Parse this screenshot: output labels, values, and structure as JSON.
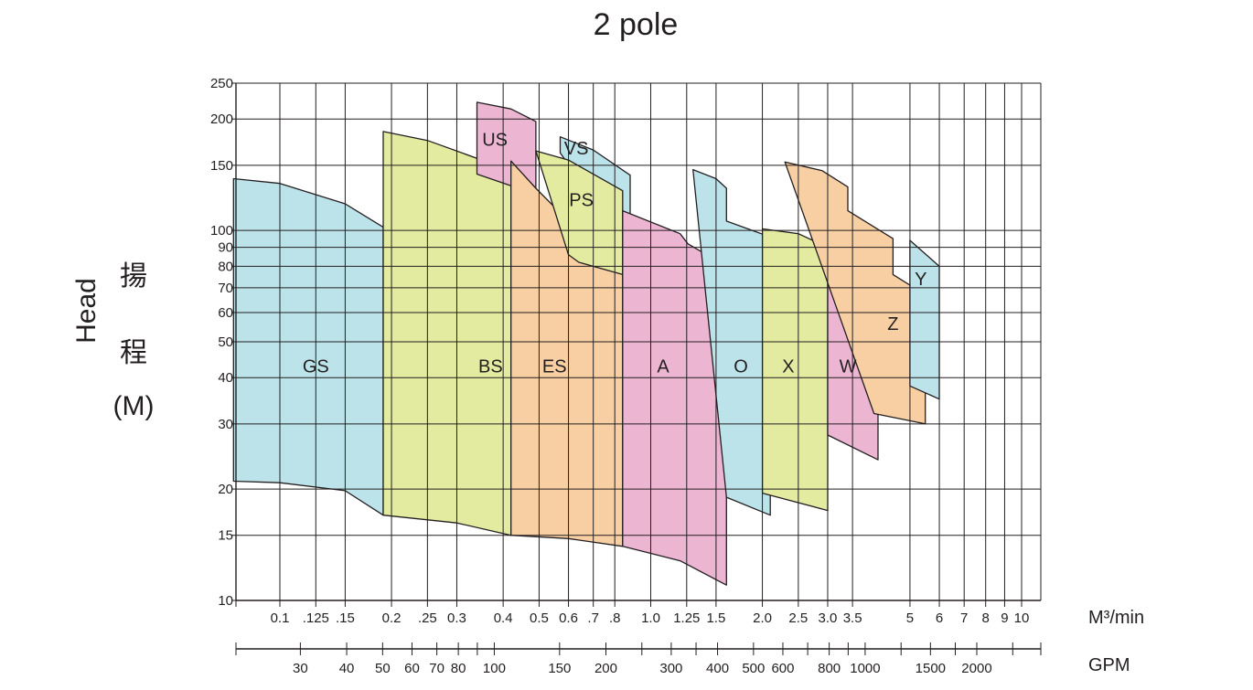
{
  "title": "2 pole",
  "y_label": {
    "en": "Head",
    "cn1": "揚",
    "cn2": "程",
    "unit": "(M)"
  },
  "x_unit_top": "M³/min",
  "x_unit_bottom": "GPM",
  "colors": {
    "blue": "#bde3ea",
    "green": "#e3eba0",
    "orange": "#f8cfa2",
    "pink": "#ecb6d3",
    "line": "#231f20"
  },
  "chart_data": {
    "type": "area",
    "title": "2 pole",
    "xlabel": "M³/min",
    "ylabel": "Head 揚程 (M)",
    "y_scale": "log",
    "ylim": [
      10,
      250
    ],
    "xlim": [
      0.075,
      10.5
    ],
    "grid": true,
    "y_ticks": [
      {
        "label": "250",
        "value": 250
      },
      {
        "label": "200",
        "value": 200
      },
      {
        "label": "150",
        "value": 150
      },
      {
        "label": "100",
        "value": 100
      },
      {
        "label": "90",
        "value": 90
      },
      {
        "label": "80",
        "value": 80
      },
      {
        "label": "70",
        "value": 70
      },
      {
        "label": "60",
        "value": 60
      },
      {
        "label": "50",
        "value": 50
      },
      {
        "label": "40",
        "value": 40
      },
      {
        "label": "30",
        "value": 30
      },
      {
        "label": "20",
        "value": 20
      },
      {
        "label": "15",
        "value": 15
      },
      {
        "label": "10",
        "value": 10
      }
    ],
    "x_ticks_top": [
      {
        "label": "0.1",
        "value": 0.1
      },
      {
        "label": ".125",
        "value": 0.125
      },
      {
        "label": ".15",
        "value": 0.15
      },
      {
        "label": "0.2",
        "value": 0.2
      },
      {
        "label": ".25",
        "value": 0.25
      },
      {
        "label": "0.3",
        "value": 0.3
      },
      {
        "label": "0.4",
        "value": 0.4
      },
      {
        "label": "0.5",
        "value": 0.5
      },
      {
        "label": "0.6",
        "value": 0.6
      },
      {
        "label": ".7",
        "value": 0.7
      },
      {
        "label": ".8",
        "value": 0.8
      },
      {
        "label": "1.0",
        "value": 1.0
      },
      {
        "label": "1.25",
        "value": 1.25
      },
      {
        "label": "1.5",
        "value": 1.5
      },
      {
        "label": "2.0",
        "value": 2.0
      },
      {
        "label": "2.5",
        "value": 2.5
      },
      {
        "label": "3.0",
        "value": 3.0
      },
      {
        "label": "3.5",
        "value": 3.5
      },
      {
        "label": "5",
        "value": 5
      },
      {
        "label": "6",
        "value": 6
      },
      {
        "label": "7",
        "value": 7
      },
      {
        "label": "8",
        "value": 8
      },
      {
        "label": "9",
        "value": 9
      },
      {
        "label": "10",
        "value": 10
      }
    ],
    "x_ticks_bottom": [
      {
        "label": "30",
        "value": 30
      },
      {
        "label": "40",
        "value": 40
      },
      {
        "label": "50",
        "value": 50
      },
      {
        "label": "60",
        "value": 60
      },
      {
        "label": "70",
        "value": 70
      },
      {
        "label": "80",
        "value": 80
      },
      {
        "label": "100",
        "value": 100
      },
      {
        "label": "150",
        "value": 150
      },
      {
        "label": "200",
        "value": 200
      },
      {
        "label": "300",
        "value": 300
      },
      {
        "label": "400",
        "value": 400
      },
      {
        "label": "500",
        "value": 500
      },
      {
        "label": "600",
        "value": 600
      },
      {
        "label": "800",
        "value": 800
      },
      {
        "label": "1000",
        "value": 1000
      },
      {
        "label": "1500",
        "value": 1500
      },
      {
        "label": "2000",
        "value": 2000
      }
    ],
    "series": [
      {
        "name": "GS",
        "color": "blue",
        "top": [
          [
            0.075,
            138
          ],
          [
            0.1,
            134
          ],
          [
            0.15,
            118
          ],
          [
            0.19,
            102
          ]
        ],
        "bottom": [
          [
            0.075,
            21
          ],
          [
            0.1,
            20.8
          ],
          [
            0.15,
            19.8
          ],
          [
            0.19,
            17
          ]
        ],
        "label_at": [
          0.125,
          43
        ]
      },
      {
        "name": "BS",
        "color": "green",
        "top": [
          [
            0.19,
            185
          ],
          [
            0.25,
            175
          ],
          [
            0.35,
            155
          ],
          [
            0.42,
            137
          ]
        ],
        "bottom": [
          [
            0.19,
            17
          ],
          [
            0.3,
            16.2
          ],
          [
            0.42,
            15
          ]
        ],
        "label_at": [
          0.37,
          43
        ]
      },
      {
        "name": "US",
        "color": "pink",
        "top": [
          [
            0.34,
            222
          ],
          [
            0.42,
            213
          ],
          [
            0.49,
            197
          ]
        ],
        "bottom": [
          [
            0.34,
            142
          ],
          [
            0.42,
            132
          ],
          [
            0.49,
            124
          ]
        ],
        "label_at": [
          0.38,
          176
        ]
      },
      {
        "name": "ES",
        "color": "orange",
        "top": [
          [
            0.42,
            154
          ],
          [
            0.49,
            130
          ],
          [
            0.6,
            106
          ],
          [
            0.64,
            91
          ],
          [
            0.84,
            76
          ]
        ],
        "bottom": [
          [
            0.42,
            15
          ],
          [
            0.6,
            14.7
          ],
          [
            0.84,
            14
          ]
        ],
        "label_at": [
          0.55,
          43
        ]
      },
      {
        "name": "VS",
        "color": "blue",
        "top": [
          [
            0.57,
            179
          ],
          [
            0.7,
            165
          ],
          [
            0.88,
            141
          ]
        ],
        "bottom": [
          [
            0.57,
            162
          ],
          [
            0.88,
            88
          ]
        ],
        "label_at": [
          0.63,
          167
        ]
      },
      {
        "name": "PS",
        "color": "green",
        "top": [
          [
            0.49,
            164
          ],
          [
            0.6,
            155
          ],
          [
            0.84,
            128
          ]
        ],
        "bottom": [
          [
            0.6,
            86
          ],
          [
            0.64,
            82
          ],
          [
            0.84,
            76
          ]
        ],
        "label_at": [
          0.65,
          121
        ]
      },
      {
        "name": "A",
        "color": "pink",
        "top": [
          [
            0.84,
            113
          ],
          [
            1.2,
            98
          ],
          [
            1.26,
            92
          ],
          [
            1.6,
            80
          ]
        ],
        "bottom": [
          [
            0.84,
            14
          ],
          [
            1.2,
            12.8
          ],
          [
            1.6,
            11
          ]
        ],
        "label_at": [
          1.08,
          43
        ]
      },
      {
        "name": "O",
        "color": "blue",
        "top": [
          [
            1.3,
            146
          ],
          [
            1.5,
            138
          ],
          [
            1.6,
            130
          ],
          [
            1.6,
            106
          ],
          [
            2.1,
            96
          ]
        ],
        "bottom": [
          [
            1.6,
            19
          ],
          [
            2.1,
            17
          ]
        ],
        "label_at": [
          1.75,
          43
        ]
      },
      {
        "name": "X",
        "color": "green",
        "top": [
          [
            2.0,
            101
          ],
          [
            2.5,
            98
          ],
          [
            3.0,
            90
          ]
        ],
        "bottom": [
          [
            2.0,
            19.5
          ],
          [
            3.0,
            17.5
          ]
        ],
        "label_at": [
          2.35,
          43
        ]
      },
      {
        "name": "W",
        "color": "pink",
        "top": [
          [
            3.0,
            98
          ],
          [
            3.5,
            93
          ],
          [
            4.1,
            82
          ]
        ],
        "bottom": [
          [
            3.0,
            28
          ],
          [
            4.1,
            24
          ]
        ],
        "label_at": [
          3.4,
          43
        ]
      },
      {
        "name": "Z",
        "color": "orange",
        "top": [
          [
            2.3,
            153
          ],
          [
            2.9,
            145
          ],
          [
            3.4,
            131
          ],
          [
            3.4,
            113
          ],
          [
            4.5,
            95
          ],
          [
            4.5,
            76
          ],
          [
            5.5,
            67
          ]
        ],
        "bottom": [
          [
            4.0,
            32
          ],
          [
            5.5,
            30
          ]
        ],
        "label_at": [
          4.5,
          56
        ]
      },
      {
        "name": "Y",
        "color": "blue",
        "top": [
          [
            5.0,
            94
          ],
          [
            6.0,
            80
          ]
        ],
        "bottom": [
          [
            5.0,
            38
          ],
          [
            6.0,
            35
          ]
        ],
        "label_at": [
          5.35,
          74
        ]
      }
    ]
  }
}
